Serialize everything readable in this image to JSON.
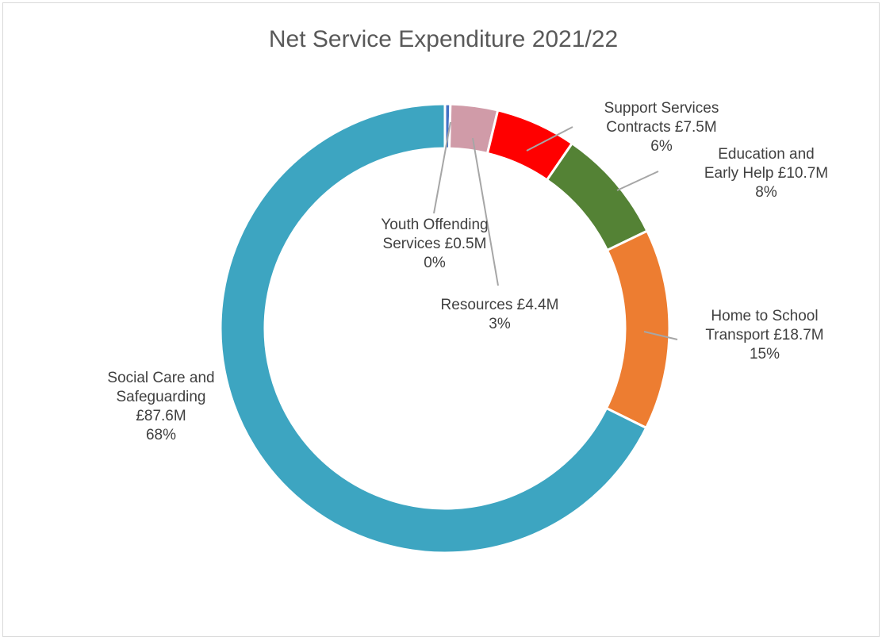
{
  "chart_data": {
    "type": "pie",
    "subtype": "doughnut",
    "title": "Net Service Expenditure 2021/22",
    "unit": "£M",
    "slices": [
      {
        "name": "Youth Offending Services",
        "value": 0.5,
        "percent_label": "0%",
        "value_label": "£0.5M",
        "color": "#4472c4",
        "label_lines": [
          "Youth Offending",
          "Services £0.5M",
          "0%"
        ]
      },
      {
        "name": "Resources",
        "value": 4.4,
        "percent_label": "3%",
        "value_label": "£4.4M",
        "color": "#d09ba8",
        "label_lines": [
          "Resources £4.4M",
          "3%"
        ]
      },
      {
        "name": "Support Services Contracts",
        "value": 7.5,
        "percent_label": "6%",
        "value_label": "£7.5M",
        "color": "#ff0000",
        "label_lines": [
          "Support Services",
          "Contracts £7.5M",
          "6%"
        ]
      },
      {
        "name": "Education and Early Help",
        "value": 10.7,
        "percent_label": "8%",
        "value_label": "£10.7M",
        "color": "#548235",
        "label_lines": [
          "Education and",
          "Early Help £10.7M",
          "8%"
        ]
      },
      {
        "name": "Home to School Transport",
        "value": 18.7,
        "percent_label": "15%",
        "value_label": "£18.7M",
        "color": "#ed7d31",
        "label_lines": [
          "Home to School",
          "Transport £18.7M",
          "15%"
        ]
      },
      {
        "name": "Social Care and Safeguarding",
        "value": 87.6,
        "percent_label": "68%",
        "value_label": "£87.6M",
        "color": "#3da5c1",
        "label_lines": [
          "Social Care and",
          "Safeguarding",
          "£87.6M",
          "68%"
        ]
      }
    ],
    "legend": "none",
    "data_labels": "outside with leader lines"
  }
}
